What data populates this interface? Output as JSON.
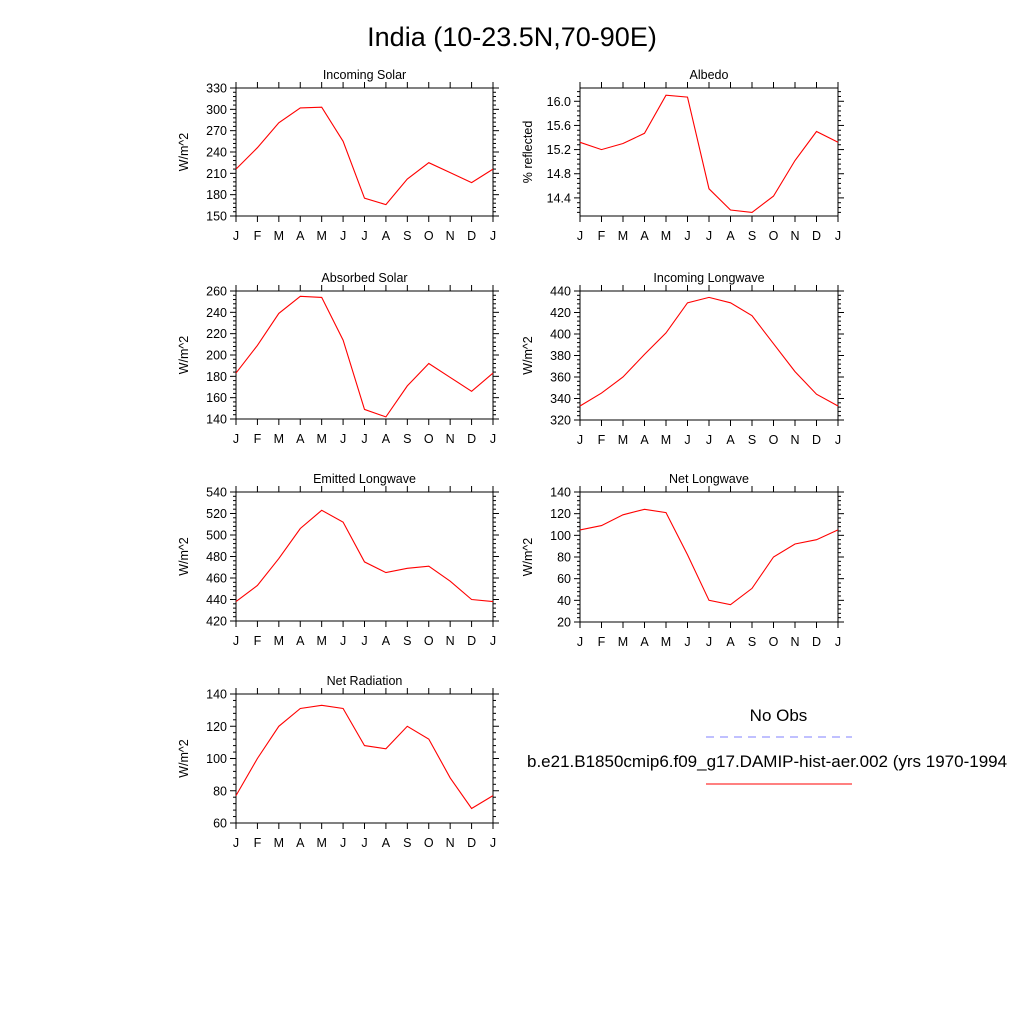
{
  "title": "India (10-23.5N,70-90E)",
  "legend": {
    "obs_label": "No Obs",
    "obs_color": "#8080ff",
    "model_label": "b.e21.B1850cmip6.f09_g17.DAMIP-hist-aer.002 (yrs 1970-1994",
    "model_color": "#ff0000"
  },
  "chart_data": [
    {
      "type": "line",
      "title": "Incoming Solar",
      "ylabel": "W/m^2",
      "xlabel": "",
      "categories": [
        "J",
        "F",
        "M",
        "A",
        "M",
        "J",
        "J",
        "A",
        "S",
        "O",
        "N",
        "D",
        "J"
      ],
      "ylim": [
        150,
        330
      ],
      "yticks": [
        150,
        180,
        210,
        240,
        270,
        300,
        330
      ],
      "ytick_labels": [
        "150",
        "180",
        "210",
        "240",
        "270",
        "300",
        "330"
      ],
      "series": [
        {
          "values": [
            216,
            246,
            281,
            302,
            303,
            255,
            175,
            166,
            202,
            225,
            211,
            197,
            216
          ]
        }
      ]
    },
    {
      "type": "line",
      "title": "Albedo",
      "ylabel": "% reflected",
      "xlabel": "",
      "categories": [
        "J",
        "F",
        "M",
        "A",
        "M",
        "J",
        "J",
        "A",
        "S",
        "O",
        "N",
        "D",
        "J"
      ],
      "ylim": [
        14.1,
        16.22
      ],
      "yticks": [
        14.4,
        14.8,
        15.2,
        15.6,
        16.0
      ],
      "ytick_labels": [
        "14.4",
        "14.8",
        "15.2",
        "15.6",
        "16.0"
      ],
      "series": [
        {
          "values": [
            15.32,
            15.2,
            15.3,
            15.47,
            16.1,
            16.07,
            14.55,
            14.2,
            14.16,
            14.43,
            15.02,
            15.5,
            15.32
          ]
        }
      ]
    },
    {
      "type": "line",
      "title": "Absorbed Solar",
      "ylabel": "W/m^2",
      "xlabel": "",
      "categories": [
        "J",
        "F",
        "M",
        "A",
        "M",
        "J",
        "J",
        "A",
        "S",
        "O",
        "N",
        "D",
        "J"
      ],
      "ylim": [
        140,
        260
      ],
      "yticks": [
        140,
        160,
        180,
        200,
        220,
        240,
        260
      ],
      "ytick_labels": [
        "140",
        "160",
        "180",
        "200",
        "220",
        "240",
        "260"
      ],
      "series": [
        {
          "values": [
            183,
            209,
            239,
            255,
            254,
            214,
            149,
            142,
            171,
            192,
            179,
            166,
            183
          ]
        }
      ]
    },
    {
      "type": "line",
      "title": "Incoming Longwave",
      "ylabel": "W/m^2",
      "xlabel": "",
      "categories": [
        "J",
        "F",
        "M",
        "A",
        "M",
        "J",
        "J",
        "A",
        "S",
        "O",
        "N",
        "D",
        "J"
      ],
      "ylim": [
        320,
        440
      ],
      "yticks": [
        320,
        340,
        360,
        380,
        400,
        420,
        440
      ],
      "ytick_labels": [
        "320",
        "340",
        "360",
        "380",
        "400",
        "420",
        "440"
      ],
      "series": [
        {
          "values": [
            333,
            345,
            360,
            381,
            401,
            429,
            434,
            429,
            417,
            391,
            365,
            344,
            333
          ]
        }
      ]
    },
    {
      "type": "line",
      "title": "Emitted Longwave",
      "ylabel": "W/m^2",
      "xlabel": "",
      "categories": [
        "J",
        "F",
        "M",
        "A",
        "M",
        "J",
        "J",
        "A",
        "S",
        "O",
        "N",
        "D",
        "J"
      ],
      "ylim": [
        420,
        540
      ],
      "yticks": [
        420,
        440,
        460,
        480,
        500,
        520,
        540
      ],
      "ytick_labels": [
        "420",
        "440",
        "460",
        "480",
        "500",
        "520",
        "540"
      ],
      "series": [
        {
          "values": [
            438,
            453,
            478,
            506,
            523,
            512,
            475,
            465,
            469,
            471,
            457,
            440,
            438
          ]
        }
      ]
    },
    {
      "type": "line",
      "title": "Net Longwave",
      "ylabel": "W/m^2",
      "xlabel": "",
      "categories": [
        "J",
        "F",
        "M",
        "A",
        "M",
        "J",
        "J",
        "A",
        "S",
        "O",
        "N",
        "D",
        "J"
      ],
      "ylim": [
        20,
        140
      ],
      "yticks": [
        20,
        40,
        60,
        80,
        100,
        120,
        140
      ],
      "ytick_labels": [
        "20",
        "40",
        "60",
        "80",
        "100",
        "120",
        "140"
      ],
      "series": [
        {
          "values": [
            105,
            109,
            119,
            124,
            121,
            82,
            40,
            36,
            51,
            80,
            92,
            96,
            105
          ]
        }
      ]
    },
    {
      "type": "line",
      "title": "Net Radiation",
      "ylabel": "W/m^2",
      "xlabel": "",
      "categories": [
        "J",
        "F",
        "M",
        "A",
        "M",
        "J",
        "J",
        "A",
        "S",
        "O",
        "N",
        "D",
        "J"
      ],
      "ylim": [
        60,
        140
      ],
      "yticks": [
        60,
        80,
        100,
        120,
        140
      ],
      "ytick_labels": [
        "60",
        "80",
        "100",
        "120",
        "140"
      ],
      "series": [
        {
          "values": [
            77,
            100,
            120,
            131,
            133,
            131,
            108,
            106,
            120,
            112,
            88,
            69,
            77
          ]
        }
      ]
    }
  ]
}
